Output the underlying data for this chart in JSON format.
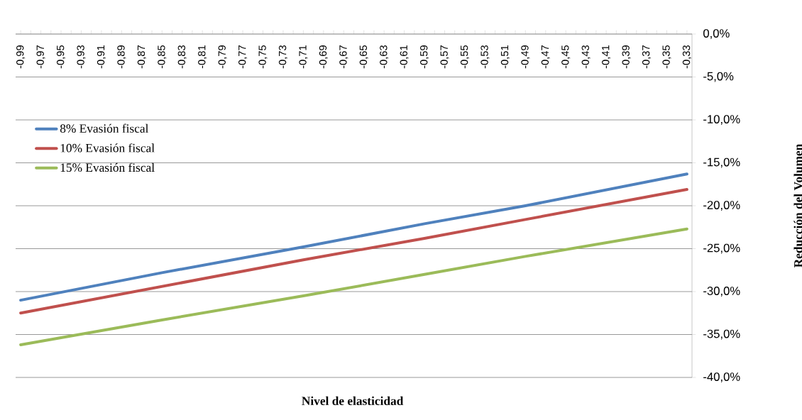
{
  "chart_data": {
    "type": "line",
    "xlabel": "Nivel de elasticidad",
    "ylabel": "Reducción del Volumen",
    "x": [
      -0.99,
      -0.85,
      -0.71,
      -0.59,
      -0.49,
      -0.33
    ],
    "series": [
      {
        "name": "8% Evasión fiscal",
        "color": "#4f81bd",
        "values": [
          -31.0,
          -27.8,
          -24.8,
          -22.1,
          -20.0,
          -16.3
        ]
      },
      {
        "name": "10% Evasión fiscal",
        "color": "#c0504d",
        "values": [
          -32.5,
          -29.4,
          -26.3,
          -23.8,
          -21.6,
          -18.1
        ]
      },
      {
        "name": "15% Evasión fiscal",
        "color": "#9bbb59",
        "values": [
          -36.2,
          -33.3,
          -30.5,
          -28.0,
          -25.9,
          -22.7
        ]
      }
    ],
    "xlim": [
      -0.995,
      -0.325
    ],
    "xticks": [
      {
        "value": -0.99,
        "label": "-0,99"
      },
      {
        "value": -0.98,
        "label": null
      },
      {
        "value": -0.97,
        "label": "-0,97"
      },
      {
        "value": -0.96,
        "label": null
      },
      {
        "value": -0.95,
        "label": "-0,95"
      },
      {
        "value": -0.94,
        "label": null
      },
      {
        "value": -0.93,
        "label": "-0,93"
      },
      {
        "value": -0.92,
        "label": null
      },
      {
        "value": -0.91,
        "label": "-0,91"
      },
      {
        "value": -0.9,
        "label": null
      },
      {
        "value": -0.89,
        "label": "-0,89"
      },
      {
        "value": -0.88,
        "label": null
      },
      {
        "value": -0.87,
        "label": "-0,87"
      },
      {
        "value": -0.86,
        "label": null
      },
      {
        "value": -0.85,
        "label": "-0,85"
      },
      {
        "value": -0.84,
        "label": null
      },
      {
        "value": -0.83,
        "label": "-0,83"
      },
      {
        "value": -0.82,
        "label": null
      },
      {
        "value": -0.81,
        "label": "-0,81"
      },
      {
        "value": -0.8,
        "label": null
      },
      {
        "value": -0.79,
        "label": "-0,79"
      },
      {
        "value": -0.78,
        "label": null
      },
      {
        "value": -0.77,
        "label": "-0,77"
      },
      {
        "value": -0.76,
        "label": null
      },
      {
        "value": -0.75,
        "label": "-0,75"
      },
      {
        "value": -0.74,
        "label": null
      },
      {
        "value": -0.73,
        "label": "-0,73"
      },
      {
        "value": -0.72,
        "label": null
      },
      {
        "value": -0.71,
        "label": "-0,71"
      },
      {
        "value": -0.7,
        "label": null
      },
      {
        "value": -0.69,
        "label": "-0,69"
      },
      {
        "value": -0.68,
        "label": null
      },
      {
        "value": -0.67,
        "label": "-0,67"
      },
      {
        "value": -0.66,
        "label": null
      },
      {
        "value": -0.65,
        "label": "-0,65"
      },
      {
        "value": -0.64,
        "label": null
      },
      {
        "value": -0.63,
        "label": "-0,63"
      },
      {
        "value": -0.62,
        "label": null
      },
      {
        "value": -0.61,
        "label": "-0,61"
      },
      {
        "value": -0.6,
        "label": null
      },
      {
        "value": -0.59,
        "label": "-0,59"
      },
      {
        "value": -0.58,
        "label": null
      },
      {
        "value": -0.57,
        "label": "-0,57"
      },
      {
        "value": -0.56,
        "label": null
      },
      {
        "value": -0.55,
        "label": "-0,55"
      },
      {
        "value": -0.54,
        "label": null
      },
      {
        "value": -0.53,
        "label": "-0,53"
      },
      {
        "value": -0.52,
        "label": null
      },
      {
        "value": -0.51,
        "label": "-0,51"
      },
      {
        "value": -0.5,
        "label": null
      },
      {
        "value": -0.49,
        "label": "-0,49"
      },
      {
        "value": -0.48,
        "label": null
      },
      {
        "value": -0.47,
        "label": "-0,47"
      },
      {
        "value": -0.46,
        "label": null
      },
      {
        "value": -0.45,
        "label": "-0,45"
      },
      {
        "value": -0.44,
        "label": null
      },
      {
        "value": -0.43,
        "label": "-0,43"
      },
      {
        "value": -0.42,
        "label": null
      },
      {
        "value": -0.41,
        "label": "-0,41"
      },
      {
        "value": -0.4,
        "label": null
      },
      {
        "value": -0.39,
        "label": "-0,39"
      },
      {
        "value": -0.38,
        "label": null
      },
      {
        "value": -0.37,
        "label": "-0,37"
      },
      {
        "value": -0.36,
        "label": null
      },
      {
        "value": -0.35,
        "label": "-0,35"
      },
      {
        "value": -0.34,
        "label": null
      },
      {
        "value": -0.33,
        "label": "-0,33"
      }
    ],
    "ylim": [
      -40,
      0
    ],
    "yticks": [
      {
        "value": 0,
        "label": "0,0%"
      },
      {
        "value": -5,
        "label": "-5,0%"
      },
      {
        "value": -10,
        "label": "-10,0%"
      },
      {
        "value": -15,
        "label": "-15,0%"
      },
      {
        "value": -20,
        "label": "-20,0%"
      },
      {
        "value": -25,
        "label": "-25,0%"
      },
      {
        "value": -30,
        "label": "-30,0%"
      },
      {
        "value": -35,
        "label": "-35,0%"
      },
      {
        "value": -40,
        "label": "-40,0%"
      }
    ],
    "grid": "y",
    "legend": "top left",
    "marker": "none",
    "line_style": "solid"
  }
}
